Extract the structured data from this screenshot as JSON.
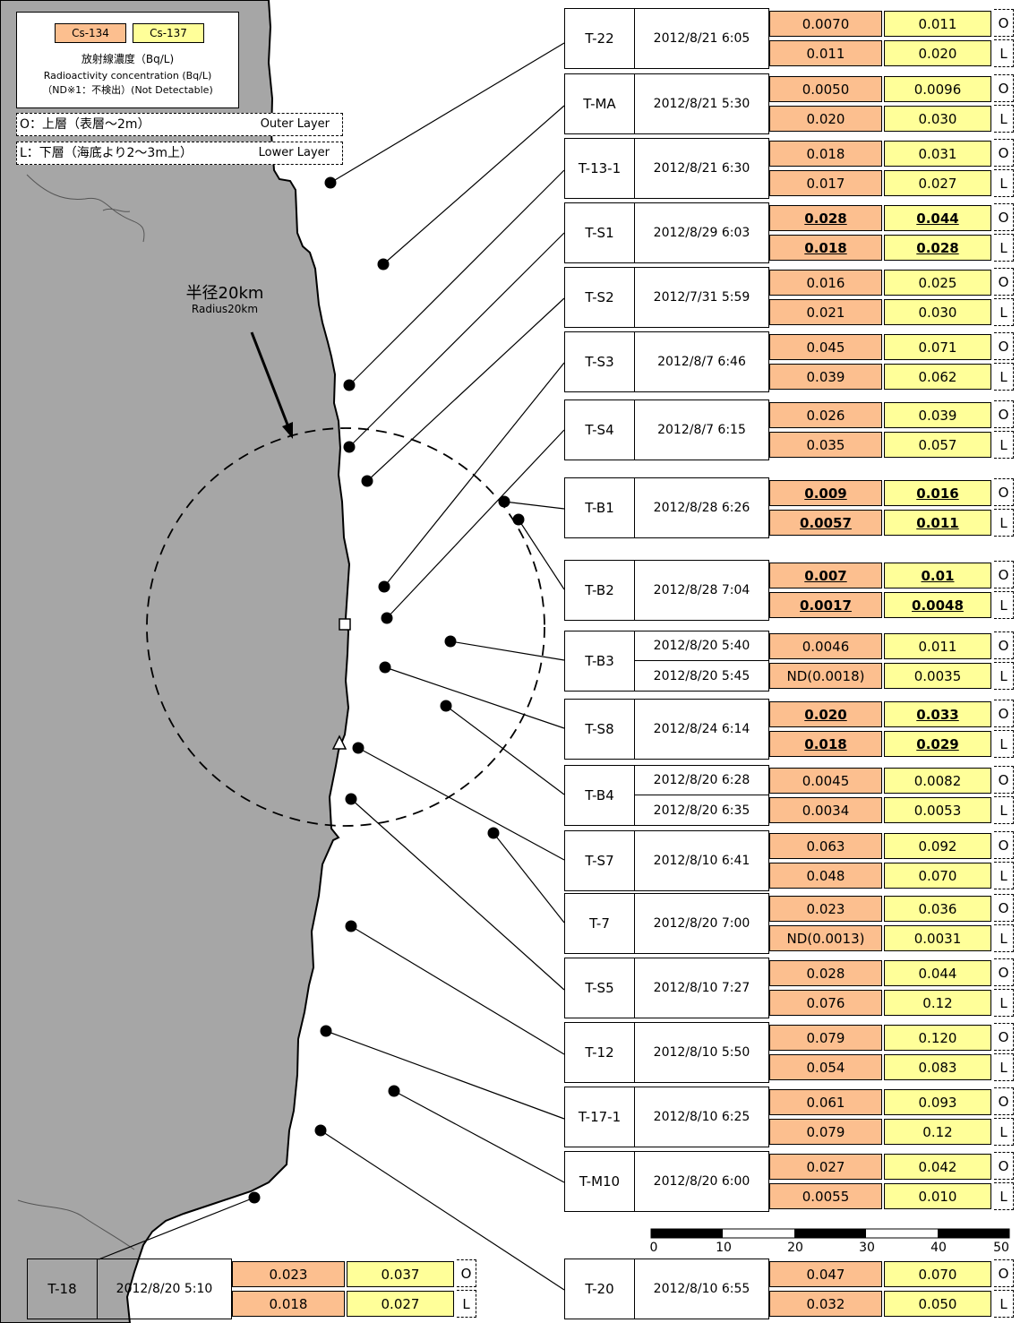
{
  "legend": {
    "cs134_label": "Cs-134",
    "cs137_label": "Cs-137",
    "title_jp": "放射線濃度（Bq/L)",
    "title_en": "Radioactivity concentration (Bq/L)",
    "nd_note": "（ND※1：不検出）(Not Detectable)",
    "cs134_color": "#fcbf8f",
    "cs137_color": "#ffff99"
  },
  "layers": {
    "outer_jp": "O：上層（表層～2m）",
    "outer_en": "Outer Layer",
    "lower_jp": "L：下層（海底より2～3m上）",
    "lower_en": "Lower Layer"
  },
  "radius_label": {
    "jp": "半径20km",
    "en": "Radius20km"
  },
  "scale_bar": {
    "ticks": [
      "0",
      "10",
      "20",
      "30",
      "40",
      "50"
    ]
  },
  "stations": [
    {
      "id": "T-22",
      "dates": [
        "2012/8/21 6:05"
      ],
      "o": {
        "cs134": "0.0070",
        "cs137": "0.011"
      },
      "l": {
        "cs134": "0.011",
        "cs137": "0.020"
      },
      "underline": false
    },
    {
      "id": "T-MA",
      "dates": [
        "2012/8/21 5:30"
      ],
      "o": {
        "cs134": "0.0050",
        "cs137": "0.0096"
      },
      "l": {
        "cs134": "0.020",
        "cs137": "0.030"
      },
      "underline": false
    },
    {
      "id": "T-13-1",
      "dates": [
        "2012/8/21 6:30"
      ],
      "o": {
        "cs134": "0.018",
        "cs137": "0.031"
      },
      "l": {
        "cs134": "0.017",
        "cs137": "0.027"
      },
      "underline": false
    },
    {
      "id": "T-S1",
      "dates": [
        "2012/8/29 6:03"
      ],
      "o": {
        "cs134": "0.028",
        "cs137": "0.044"
      },
      "l": {
        "cs134": "0.018",
        "cs137": "0.028"
      },
      "underline": true
    },
    {
      "id": "T-S2",
      "dates": [
        "2012/7/31 5:59"
      ],
      "o": {
        "cs134": "0.016",
        "cs137": "0.025"
      },
      "l": {
        "cs134": "0.021",
        "cs137": "0.030"
      },
      "underline": false
    },
    {
      "id": "T-S3",
      "dates": [
        "2012/8/7 6:46"
      ],
      "o": {
        "cs134": "0.045",
        "cs137": "0.071"
      },
      "l": {
        "cs134": "0.039",
        "cs137": "0.062"
      },
      "underline": false
    },
    {
      "id": "T-S4",
      "dates": [
        "2012/8/7 6:15"
      ],
      "o": {
        "cs134": "0.026",
        "cs137": "0.039"
      },
      "l": {
        "cs134": "0.035",
        "cs137": "0.057"
      },
      "underline": false
    },
    {
      "id": "T-B1",
      "dates": [
        "2012/8/28 6:26"
      ],
      "o": {
        "cs134": "0.009",
        "cs137": "0.016"
      },
      "l": {
        "cs134": "0.0057",
        "cs137": "0.011"
      },
      "underline": true
    },
    {
      "id": "T-B2",
      "dates": [
        "2012/8/28 7:04"
      ],
      "o": {
        "cs134": "0.007",
        "cs137": "0.01"
      },
      "l": {
        "cs134": "0.0017",
        "cs137": "0.0048"
      },
      "underline": true
    },
    {
      "id": "T-B3",
      "dates": [
        "2012/8/20 5:40",
        "2012/8/20 5:45"
      ],
      "o": {
        "cs134": "0.0046",
        "cs137": "0.011"
      },
      "l": {
        "cs134": "ND(0.0018)",
        "cs137": "0.0035"
      },
      "underline": false
    },
    {
      "id": "T-S8",
      "dates": [
        "2012/8/24 6:14"
      ],
      "o": {
        "cs134": "0.020",
        "cs137": "0.033"
      },
      "l": {
        "cs134": "0.018",
        "cs137": "0.029"
      },
      "underline": true
    },
    {
      "id": "T-B4",
      "dates": [
        "2012/8/20 6:28",
        "2012/8/20 6:35"
      ],
      "o": {
        "cs134": "0.0045",
        "cs137": "0.0082"
      },
      "l": {
        "cs134": "0.0034",
        "cs137": "0.0053"
      },
      "underline": false
    },
    {
      "id": "T-S7",
      "dates": [
        "2012/8/10 6:41"
      ],
      "o": {
        "cs134": "0.063",
        "cs137": "0.092"
      },
      "l": {
        "cs134": "0.048",
        "cs137": "0.070"
      },
      "underline": false
    },
    {
      "id": "T-7",
      "dates": [
        "2012/8/20 7:00"
      ],
      "o": {
        "cs134": "0.023",
        "cs137": "0.036"
      },
      "l": {
        "cs134": "ND(0.0013)",
        "cs137": "0.0031"
      },
      "underline": false
    },
    {
      "id": "T-S5",
      "dates": [
        "2012/8/10 7:27"
      ],
      "o": {
        "cs134": "0.028",
        "cs137": "0.044"
      },
      "l": {
        "cs134": "0.076",
        "cs137": "0.12"
      },
      "underline": false
    },
    {
      "id": "T-12",
      "dates": [
        "2012/8/10 5:50"
      ],
      "o": {
        "cs134": "0.079",
        "cs137": "0.120"
      },
      "l": {
        "cs134": "0.054",
        "cs137": "0.083"
      },
      "underline": false
    },
    {
      "id": "T-17-1",
      "dates": [
        "2012/8/10 6:25"
      ],
      "o": {
        "cs134": "0.061",
        "cs137": "0.093"
      },
      "l": {
        "cs134": "0.079",
        "cs137": "0.12"
      },
      "underline": false
    },
    {
      "id": "T-M10",
      "dates": [
        "2012/8/20 6:00"
      ],
      "o": {
        "cs134": "0.027",
        "cs137": "0.042"
      },
      "l": {
        "cs134": "0.0055",
        "cs137": "0.010"
      },
      "underline": false
    },
    {
      "id": "T-20",
      "dates": [
        "2012/8/10 6:55"
      ],
      "o": {
        "cs134": "0.047",
        "cs137": "0.070"
      },
      "l": {
        "cs134": "0.032",
        "cs137": "0.050"
      },
      "underline": false
    },
    {
      "id": "T-18",
      "dates": [
        "2012/8/20 5:10"
      ],
      "o": {
        "cs134": "0.023",
        "cs137": "0.037"
      },
      "l": {
        "cs134": "0.018",
        "cs137": "0.027"
      },
      "underline": false
    }
  ]
}
